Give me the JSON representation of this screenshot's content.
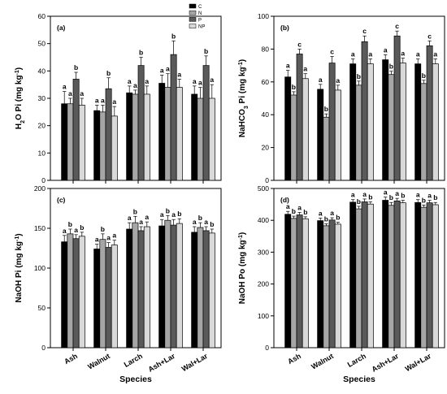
{
  "legend": [
    {
      "name": "C",
      "color": "#000000"
    },
    {
      "name": "N",
      "color": "#a6a6a6"
    },
    {
      "name": "P",
      "color": "#5a5a5a"
    },
    {
      "name": "NP",
      "color": "#d9d9d9"
    }
  ],
  "chart_data": [
    {
      "type": "bar",
      "panel_label": "(a)",
      "categories": [
        "Ash",
        "Walnut",
        "Larch",
        "Ash+Lar",
        "Wal+Lar"
      ],
      "ylabel": "H2O Pi (mg kg-1)",
      "ylim": [
        0,
        60
      ],
      "yticks": [
        0,
        10,
        20,
        30,
        40,
        50,
        60
      ],
      "xlabel": "",
      "series": [
        {
          "name": "C",
          "values": [
            28,
            25.5,
            32,
            35.5,
            31.5
          ],
          "errors": [
            4.5,
            2,
            2.5,
            3,
            3
          ],
          "labels": [
            "a",
            "a",
            "a",
            "a",
            "a"
          ]
        },
        {
          "name": "N",
          "values": [
            28,
            25,
            31.5,
            34,
            30
          ],
          "errors": [
            2,
            2.5,
            1.5,
            5,
            4
          ],
          "labels": [
            "a",
            "a",
            "a",
            "a",
            "a"
          ]
        },
        {
          "name": "P",
          "values": [
            37,
            33.5,
            42,
            46,
            42
          ],
          "errors": [
            2.5,
            4,
            3,
            5,
            3.5
          ],
          "labels": [
            "b",
            "b",
            "b",
            "b",
            "b"
          ]
        },
        {
          "name": "NP",
          "values": [
            27.5,
            23.5,
            31.5,
            34,
            30
          ],
          "errors": [
            2.5,
            3.5,
            3,
            3,
            5
          ],
          "labels": [
            "a",
            "a",
            "a",
            "a",
            "a"
          ]
        }
      ]
    },
    {
      "type": "bar",
      "panel_label": "(b)",
      "categories": [
        "Ash",
        "Walnut",
        "Larch",
        "Ash+Lar",
        "Wal+Lar"
      ],
      "ylabel": "NaHCO3 Pi (mg kg-1)",
      "ylim": [
        0,
        100
      ],
      "yticks": [
        0,
        20,
        40,
        60,
        80,
        100
      ],
      "xlabel": "",
      "series": [
        {
          "name": "C",
          "values": [
            63,
            55.5,
            71,
            73.5,
            71
          ],
          "errors": [
            4,
            3,
            3,
            3,
            3
          ],
          "labels": [
            "a",
            "a",
            "a",
            "a",
            "a"
          ]
        },
        {
          "name": "N",
          "values": [
            52,
            38.5,
            58,
            64.5,
            59
          ],
          "errors": [
            2,
            2,
            2.5,
            2,
            2
          ],
          "labels": [
            "b",
            "b",
            "b",
            "b",
            "b"
          ]
        },
        {
          "name": "P",
          "values": [
            77,
            71.5,
            84.5,
            88,
            82
          ],
          "errors": [
            3,
            4,
            3.5,
            3,
            3
          ],
          "labels": [
            "c",
            "c",
            "c",
            "c",
            "c"
          ]
        },
        {
          "name": "NP",
          "values": [
            62,
            55,
            71,
            71.5,
            71
          ],
          "errors": [
            3,
            3,
            3,
            3,
            3
          ],
          "labels": [
            "a",
            "a",
            "a",
            "a",
            "a"
          ]
        }
      ]
    },
    {
      "type": "bar",
      "panel_label": "(c)",
      "categories": [
        "Ash",
        "Walnut",
        "Larch",
        "Ash+Lar",
        "Wal+Lar"
      ],
      "ylabel": "NaOH Pi (mg kg-1)",
      "ylim": [
        0,
        200
      ],
      "yticks": [
        0,
        50,
        100,
        150,
        200
      ],
      "xlabel": "Species",
      "series": [
        {
          "name": "C",
          "values": [
            133,
            124,
            149,
            153,
            145
          ],
          "errors": [
            8,
            6,
            8,
            8,
            7
          ],
          "labels": [
            "a",
            "a",
            "a",
            "a",
            "a"
          ]
        },
        {
          "name": "N",
          "values": [
            143,
            136,
            157,
            160,
            151
          ],
          "errors": [
            6,
            7,
            8,
            6,
            6
          ],
          "labels": [
            "b",
            "b",
            "b",
            "b",
            "b"
          ]
        },
        {
          "name": "P",
          "values": [
            137,
            126,
            147,
            154,
            147
          ],
          "errors": [
            5,
            6,
            5,
            7,
            5
          ],
          "labels": [
            "a",
            "a",
            "a",
            "a",
            "a"
          ]
        },
        {
          "name": "NP",
          "values": [
            140,
            129,
            152,
            156,
            144
          ],
          "errors": [
            5,
            6,
            6,
            6,
            5
          ],
          "labels": [
            "b",
            "a",
            "a",
            "b",
            "b"
          ]
        }
      ]
    },
    {
      "type": "bar",
      "panel_label": "(d)",
      "categories": [
        "Ash",
        "Walnut",
        "Larch",
        "Ash+Lar",
        "Wal+Lar"
      ],
      "ylabel": "NaOH Po (mg kg-1)",
      "ylim": [
        0,
        500
      ],
      "yticks": [
        0,
        100,
        200,
        300,
        400,
        500
      ],
      "xlabel": "Species",
      "series": [
        {
          "name": "C",
          "values": [
            419,
            399,
            457,
            463,
            456
          ],
          "errors": [
            9,
            8,
            8,
            10,
            9
          ],
          "labels": [
            "a",
            "a",
            "a",
            "a",
            "a"
          ]
        },
        {
          "name": "N",
          "values": [
            406,
            383,
            436,
            447,
            441
          ],
          "errors": [
            7,
            6,
            8,
            9,
            7
          ],
          "labels": [
            "b",
            "b",
            "b",
            "b",
            "b"
          ]
        },
        {
          "name": "P",
          "values": [
            417,
            401,
            458,
            461,
            455
          ],
          "errors": [
            8,
            7,
            9,
            8,
            8
          ],
          "labels": [
            "a",
            "a",
            "a",
            "a",
            "a"
          ]
        },
        {
          "name": "NP",
          "values": [
            405,
            388,
            451,
            455,
            449
          ],
          "errors": [
            6,
            6,
            7,
            8,
            7
          ],
          "labels": [
            "b",
            "b",
            "b",
            "b",
            "b"
          ]
        }
      ]
    }
  ]
}
